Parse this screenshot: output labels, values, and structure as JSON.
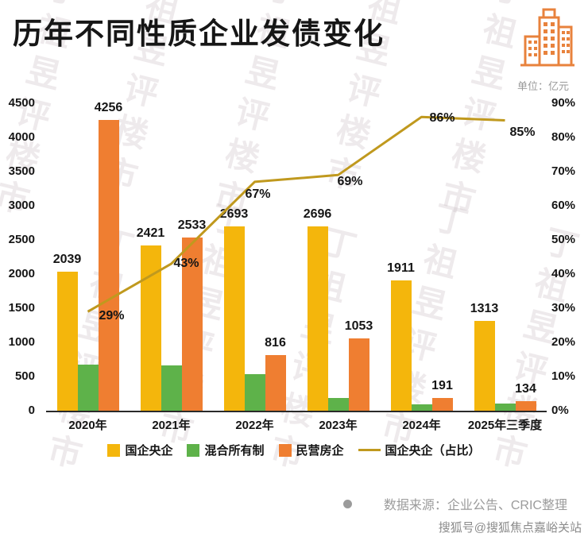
{
  "chart_data": {
    "type": "bar",
    "title": "历年不同性质企业发债变化",
    "unit": "单位：亿元",
    "categories": [
      "2020年",
      "2021年",
      "2022年",
      "2023年",
      "2024年",
      "2025年三季度"
    ],
    "series": [
      {
        "type": "bar",
        "name": "国企央企",
        "color": "#F4B60C",
        "values": [
          2039,
          2421,
          2693,
          2696,
          1911,
          1313
        ],
        "show_labels": true
      },
      {
        "type": "bar",
        "name": "混合所有制",
        "color": "#5EB24A",
        "values": [
          680,
          660,
          530,
          190,
          90,
          110
        ],
        "show_labels": false
      },
      {
        "type": "bar",
        "name": "民营房企",
        "color": "#EF7E31",
        "values": [
          4256,
          2533,
          816,
          1053,
          191,
          134
        ],
        "show_labels": true
      },
      {
        "type": "line",
        "name": "国企央企（占比）",
        "color": "#C0991E",
        "axis": "right",
        "values": [
          29,
          43,
          67,
          69,
          86,
          85
        ],
        "unit": "%",
        "show_labels": true
      }
    ],
    "y_left": {
      "min": 0,
      "max": 4500,
      "step": 500
    },
    "y_right": {
      "min": 0,
      "max": 90,
      "step": 10,
      "suffix": "%"
    },
    "legend_position": "bottom",
    "grid": false
  },
  "icon": {
    "building_color": "#E8823C"
  },
  "watermark": {
    "text": "丁祖昱评楼市"
  },
  "footer": {
    "source": "数据来源：企业公告、CRIC整理",
    "sohu": "搜狐号@搜狐焦点嘉峪关站"
  }
}
